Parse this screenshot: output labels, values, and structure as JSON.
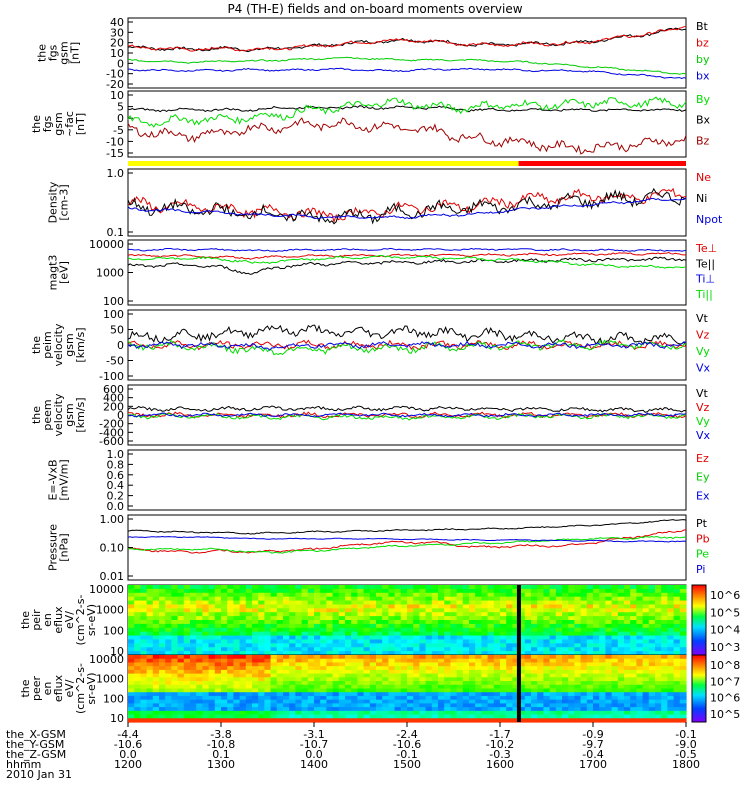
{
  "title": "P4 (TH-E) fields and on-board moments overview",
  "colors": {
    "black": "#000000",
    "red": "#e00000",
    "dkred": "#a00000",
    "green": "#00dd00",
    "blue": "#0000e0",
    "yellow": "#ffff00"
  },
  "chart_data": [
    {
      "type": "line",
      "ylabel": [
        "the",
        "fgs",
        "gsm",
        "[nT]"
      ],
      "ylim": [
        -20,
        40
      ],
      "ticks": [
        "40",
        "30",
        "20",
        "10",
        "0",
        "-10",
        "-20"
      ],
      "series": [
        {
          "name": "Bt",
          "color": "#000000",
          "values": [
            15,
            14,
            13,
            14,
            13,
            14,
            16,
            18,
            20,
            21,
            20,
            17,
            17,
            18,
            18,
            20,
            24,
            27,
            32
          ],
          "noise": 2
        },
        {
          "name": "bz",
          "color": "#e00000",
          "values": [
            15,
            14,
            13,
            14,
            13,
            14,
            16,
            18,
            20,
            21,
            20,
            17,
            17,
            18,
            18,
            20,
            24,
            27,
            33
          ],
          "noise": 2
        },
        {
          "name": "by",
          "color": "#00cc00",
          "values": [
            4,
            3,
            2,
            3,
            3,
            4,
            5,
            6,
            5,
            4,
            4,
            4,
            3,
            2,
            0,
            -2,
            -4,
            -6,
            -8
          ],
          "noise": 1
        },
        {
          "name": "bx",
          "color": "#0000e0",
          "values": [
            -4,
            -5,
            -5,
            -5,
            -4,
            -5,
            -4,
            -4,
            -5,
            -5,
            -4,
            -4,
            -4,
            -5,
            -5,
            -6,
            -8,
            -10,
            -12
          ],
          "noise": 1
        }
      ],
      "legend": [
        "Bt",
        "bz",
        "by",
        "bx"
      ]
    },
    {
      "type": "line",
      "ylabel": [
        "the",
        "fgs",
        "gsm",
        "~fac",
        "[nT]"
      ],
      "ylim": [
        -18,
        10
      ],
      "ticks": [
        "10",
        "5",
        "0",
        "-5",
        "-10",
        "-15"
      ],
      "series": [
        {
          "name": "Bx",
          "color": "#000000",
          "values": [
            2,
            2,
            2,
            2,
            2,
            3,
            3,
            3,
            3,
            3,
            3,
            2,
            2,
            2,
            2,
            2,
            2,
            2,
            2
          ],
          "noise": 0.8
        },
        {
          "name": "By",
          "color": "#00dd00",
          "values": [
            -3,
            -3,
            -2,
            -2,
            -1,
            0,
            2,
            3,
            5,
            5,
            3,
            3,
            4,
            4,
            4,
            5,
            5,
            5,
            5
          ],
          "noise": 2.5
        },
        {
          "name": "Bz",
          "color": "#a00000",
          "values": [
            -6,
            -8,
            -9,
            -8,
            -6,
            -5,
            -4,
            -4,
            -5,
            -6,
            -7,
            -10,
            -11,
            -12,
            -14,
            -14,
            -13,
            -12,
            -10
          ],
          "noise": 3
        }
      ],
      "legend": [
        "By",
        "Bx",
        "Bz"
      ]
    },
    {
      "type": "bar",
      "segments": [
        {
          "from": 1200,
          "to": 1620,
          "color": "#ffff00"
        },
        {
          "from": 1620,
          "to": 1800,
          "color": "#ff0000"
        }
      ]
    },
    {
      "type": "line",
      "log": true,
      "ylabel": [
        "Density",
        "[cm-3]"
      ],
      "ylim": [
        0.1,
        1.2
      ],
      "ticks": [
        "1.0",
        "0.1"
      ],
      "series": [
        {
          "name": "Ne",
          "color": "#e00000",
          "values": [
            0.35,
            0.3,
            0.3,
            0.28,
            0.25,
            0.25,
            0.22,
            0.22,
            0.25,
            0.28,
            0.3,
            0.3,
            0.35,
            0.4,
            0.4,
            0.45,
            0.4,
            0.45,
            0.5
          ],
          "noise": 0.12
        },
        {
          "name": "Ni",
          "color": "#000000",
          "values": [
            0.3,
            0.28,
            0.27,
            0.25,
            0.23,
            0.22,
            0.2,
            0.2,
            0.22,
            0.25,
            0.27,
            0.28,
            0.3,
            0.32,
            0.35,
            0.38,
            0.4,
            0.42,
            0.45
          ],
          "noise": 0.15
        },
        {
          "name": "Npot",
          "color": "#0000e0",
          "values": [
            0.28,
            0.26,
            0.25,
            0.24,
            0.22,
            0.22,
            0.2,
            0.2,
            0.2,
            0.2,
            0.22,
            0.22,
            0.25,
            0.28,
            0.3,
            0.32,
            0.35,
            0.38,
            0.4
          ],
          "noise": 0.03
        }
      ],
      "legend": [
        "Ne",
        "Ni",
        "Npot"
      ]
    },
    {
      "type": "line",
      "log": true,
      "ylabel": [
        "magt3",
        "[eV]"
      ],
      "ylim": [
        100,
        15000
      ],
      "ticks": [
        "10000",
        "1000",
        "100"
      ],
      "series": [
        {
          "name": "Te⊥",
          "color": "#e00000",
          "values": [
            4500,
            4400,
            4300,
            4000,
            3800,
            4200,
            4400,
            4500,
            4600,
            4600,
            4700,
            4700,
            4800,
            4900,
            5000,
            5100,
            5200,
            5200,
            5300
          ],
          "noise": 0.05
        },
        {
          "name": "Te||",
          "color": "#000000",
          "values": [
            2000,
            2100,
            2200,
            1800,
            1100,
            2000,
            2300,
            2500,
            2600,
            2700,
            2800,
            2900,
            3000,
            3100,
            3200,
            3300,
            3300,
            3400,
            3500
          ],
          "noise": 0.08
        },
        {
          "name": "Ti⊥",
          "color": "#0000e0",
          "values": [
            7000,
            7100,
            7200,
            7200,
            6500,
            6800,
            7000,
            7100,
            7200,
            7200,
            7300,
            7300,
            7400,
            7200,
            7000,
            6800,
            6800,
            6700,
            6600
          ],
          "noise": 0.04
        },
        {
          "name": "Ti||",
          "color": "#00dd00",
          "values": [
            3500,
            3600,
            3700,
            3500,
            2500,
            3000,
            3500,
            3800,
            4000,
            4000,
            3800,
            3600,
            3400,
            3000,
            2600,
            2200,
            2000,
            1900,
            1800
          ],
          "noise": 0.06
        }
      ],
      "legend": [
        "Te⊥",
        "Te||",
        "Ti⊥",
        "Ti||"
      ]
    },
    {
      "type": "line",
      "ylabel": [
        "the",
        "peim",
        "velocity",
        "gsm",
        "[km/s]"
      ],
      "ylim": [
        -100,
        100
      ],
      "ticks": [
        "100",
        "50",
        "0",
        "-50",
        "-100"
      ],
      "series": [
        {
          "name": "Vt",
          "color": "#000000",
          "values": [
            25,
            25,
            30,
            30,
            40,
            45,
            40,
            35,
            35,
            40,
            35,
            30,
            30,
            25,
            20,
            20,
            18,
            18,
            16
          ],
          "noise": 20
        },
        {
          "name": "Vz",
          "color": "#e00000",
          "values": [
            0,
            0,
            0,
            0,
            0,
            0,
            0,
            0,
            0,
            0,
            0,
            0,
            0,
            0,
            0,
            0,
            0,
            0,
            0
          ],
          "noise": 14
        },
        {
          "name": "Vy",
          "color": "#00dd00",
          "values": [
            0,
            0,
            -5,
            -5,
            -15,
            -15,
            -10,
            -10,
            -10,
            -10,
            -5,
            -5,
            0,
            0,
            0,
            0,
            0,
            0,
            0
          ],
          "noise": 16
        },
        {
          "name": "Vx",
          "color": "#0000e0",
          "values": [
            0,
            0,
            0,
            0,
            -5,
            -5,
            0,
            0,
            0,
            0,
            0,
            0,
            0,
            0,
            0,
            0,
            0,
            0,
            0
          ],
          "noise": 10
        }
      ],
      "legend": [
        "Vt",
        "Vz",
        "Vy",
        "Vx"
      ]
    },
    {
      "type": "line",
      "ylabel": [
        "the",
        "peem",
        "velocity",
        "gsm",
        "[km/s]"
      ],
      "ylim": [
        -600,
        600
      ],
      "ticks": [
        "600",
        "400",
        "200",
        "0",
        "-200",
        "-400",
        "-600"
      ],
      "series": [
        {
          "name": "Vt",
          "color": "#000000",
          "values": [
            120,
            120,
            120,
            120,
            130,
            130,
            130,
            130,
            130,
            130,
            130,
            130,
            120,
            120,
            110,
            110,
            100,
            100,
            100
          ],
          "noise": 50
        },
        {
          "name": "Vz",
          "color": "#e00000",
          "values": [
            0,
            0,
            0,
            0,
            0,
            0,
            0,
            0,
            0,
            0,
            0,
            0,
            0,
            0,
            0,
            0,
            0,
            0,
            0
          ],
          "noise": 60
        },
        {
          "name": "Vy",
          "color": "#00dd00",
          "values": [
            -20,
            -20,
            -20,
            -20,
            -40,
            -40,
            -40,
            -50,
            -50,
            -50,
            -40,
            -40,
            -30,
            -20,
            -20,
            -20,
            -20,
            -20,
            -20
          ],
          "noise": 60
        },
        {
          "name": "Vx",
          "color": "#0000e0",
          "values": [
            0,
            0,
            0,
            0,
            0,
            0,
            0,
            0,
            0,
            0,
            0,
            0,
            0,
            0,
            0,
            0,
            0,
            0,
            0
          ],
          "noise": 40
        }
      ],
      "legend": [
        "Vt",
        "Vz",
        "Vy",
        "Vx"
      ]
    },
    {
      "type": "line",
      "ylabel": [
        "E=-VxB",
        "[mV/m]"
      ],
      "ylim": [
        0,
        1
      ],
      "ticks": [
        "1.0",
        "0.8",
        "0.6",
        "0.4",
        "0.2",
        "0.0"
      ],
      "series": [],
      "legend": [
        "Ez",
        "Ey",
        "Ex"
      ],
      "legend_colors": [
        "#e00000",
        "#00cc00",
        "#0000e0"
      ]
    },
    {
      "type": "line",
      "log": true,
      "ylabel": [
        "Pressure",
        "[nPa]"
      ],
      "ylim": [
        0.01,
        1.3
      ],
      "ticks": [
        "1.00",
        "0.10",
        "0.01"
      ],
      "series": [
        {
          "name": "Pt",
          "color": "#000000",
          "values": [
            0.4,
            0.38,
            0.36,
            0.35,
            0.33,
            0.35,
            0.37,
            0.38,
            0.4,
            0.42,
            0.43,
            0.45,
            0.47,
            0.5,
            0.55,
            0.6,
            0.68,
            0.8,
            0.95
          ],
          "noise": 0.03
        },
        {
          "name": "Pb",
          "color": "#e00000",
          "values": [
            0.1,
            0.09,
            0.08,
            0.09,
            0.08,
            0.09,
            0.1,
            0.13,
            0.16,
            0.17,
            0.16,
            0.12,
            0.12,
            0.13,
            0.13,
            0.16,
            0.23,
            0.3,
            0.45
          ],
          "noise": 0.05
        },
        {
          "name": "Pe",
          "color": "#00dd00",
          "values": [
            0.1,
            0.1,
            0.1,
            0.1,
            0.08,
            0.08,
            0.09,
            0.1,
            0.12,
            0.13,
            0.14,
            0.15,
            0.16,
            0.18,
            0.2,
            0.22,
            0.23,
            0.24,
            0.25
          ],
          "noise": 0.04
        },
        {
          "name": "Pi",
          "color": "#0000e0",
          "values": [
            0.25,
            0.25,
            0.25,
            0.24,
            0.22,
            0.22,
            0.22,
            0.22,
            0.22,
            0.21,
            0.21,
            0.2,
            0.2,
            0.2,
            0.19,
            0.19,
            0.18,
            0.18,
            0.18
          ],
          "noise": 0.02
        }
      ],
      "legend": [
        "Pt",
        "Pb",
        "Pe",
        "Pi"
      ]
    },
    {
      "type": "heatmap",
      "ylabel": [
        "the",
        "peir",
        "en",
        "eflux",
        "eV/",
        "(cm^2-s-",
        "sr-eV)"
      ],
      "ticks": [
        "10000",
        "1000",
        "100",
        "10"
      ],
      "colorbar_ticks": [
        "10^6",
        "10^5",
        "10^4",
        "10^3"
      ]
    },
    {
      "type": "heatmap",
      "ylabel": [
        "the",
        "peer",
        "en",
        "eflux",
        "eV/",
        "(cm^2-s-",
        "sr-eV)"
      ],
      "ticks": [
        "10000",
        "1000",
        "100",
        "10"
      ],
      "colorbar_ticks": [
        "10^8",
        "10^7",
        "10^6",
        "10^5"
      ]
    }
  ],
  "xaxis": {
    "times": [
      1200,
      1300,
      1400,
      1500,
      1600,
      1700,
      1800
    ],
    "rows": [
      {
        "label": "the_X-GSM",
        "values": [
          "-4.4",
          "-3.8",
          "-3.1",
          "-2.4",
          "-1.7",
          "-0.9",
          "-0.1"
        ]
      },
      {
        "label": "the_Y-GSM",
        "values": [
          "-10.6",
          "-10.8",
          "-10.7",
          "-10.6",
          "-10.2",
          "-9.7",
          "-9.0"
        ]
      },
      {
        "label": "the_Z-GSM",
        "values": [
          "0.0",
          "0.1",
          "0.0",
          "-0.1",
          "-0.3",
          "-0.4",
          "-0.5"
        ]
      },
      {
        "label": "hhmm",
        "values": [
          "1200",
          "1300",
          "1400",
          "1500",
          "1600",
          "1700",
          "1800"
        ]
      }
    ],
    "date": "2010 Jan 31"
  }
}
